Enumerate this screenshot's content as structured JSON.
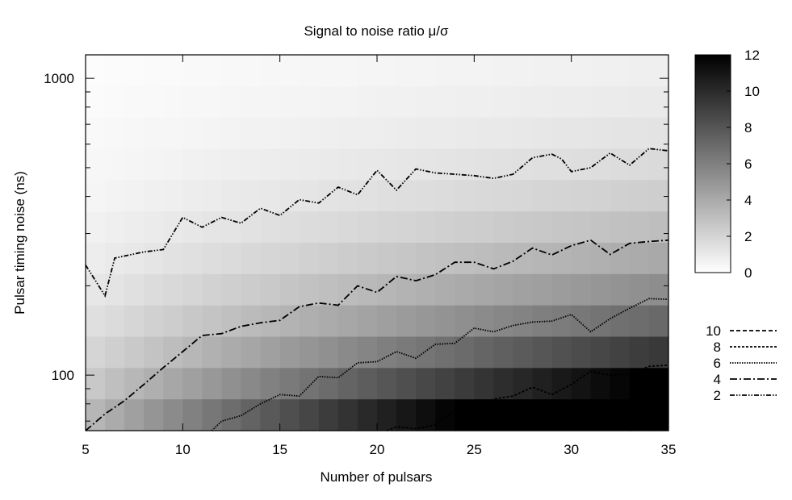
{
  "chart_data": {
    "type": "heatmap",
    "title": "Signal to noise ratio μ/σ",
    "xlabel": "Number of pulsars",
    "ylabel": "Pulsar timing noise (ns)",
    "xlim": [
      5,
      35
    ],
    "ylim": [
      65,
      1200
    ],
    "yscale": "log",
    "x_ticks": [
      5,
      10,
      15,
      20,
      25,
      30,
      35
    ],
    "y_ticks": [
      100,
      1000
    ],
    "colorbar": {
      "range": [
        0,
        12
      ],
      "ticks": [
        0,
        2,
        4,
        6,
        8,
        10,
        12
      ],
      "colors": [
        "#ffffff",
        "#000000"
      ]
    },
    "legend_position": "right",
    "legend": [
      {
        "label": "10",
        "dash": "5,3"
      },
      {
        "label": "8",
        "dash": "3,2"
      },
      {
        "label": "6",
        "dash": "1.5,1.5"
      },
      {
        "label": "4",
        "dash": "9,3,2,3"
      },
      {
        "label": "2",
        "dash": "6,2,1.5,2,1.5,2"
      }
    ],
    "contours": [
      {
        "level": "2",
        "x": [
          5,
          6,
          6.5,
          8,
          9,
          10,
          11,
          12,
          13,
          14,
          15,
          16,
          17,
          18,
          19,
          20,
          21,
          22,
          23,
          24,
          25,
          26,
          27,
          28,
          29,
          29.5,
          30,
          31,
          32,
          33,
          34,
          35
        ],
        "y": [
          235,
          185,
          248,
          260,
          265,
          340,
          315,
          340,
          325,
          365,
          345,
          390,
          380,
          430,
          405,
          490,
          420,
          495,
          480,
          475,
          470,
          460,
          475,
          540,
          555,
          535,
          485,
          500,
          560,
          510,
          580,
          570
        ]
      },
      {
        "level": "4",
        "x": [
          5,
          6,
          7,
          8,
          9,
          10,
          11,
          12,
          13,
          14,
          15,
          16,
          17,
          18,
          19,
          20,
          21,
          22,
          23,
          24,
          25,
          26,
          27,
          28,
          29,
          30,
          31,
          32,
          33,
          34,
          35
        ],
        "y": [
          65,
          74,
          82,
          93,
          106,
          120,
          136,
          138,
          146,
          150,
          153,
          170,
          175,
          172,
          200,
          190,
          215,
          208,
          218,
          240,
          240,
          228,
          242,
          268,
          254,
          273,
          285,
          255,
          278,
          282,
          285
        ]
      },
      {
        "level": "6",
        "x": [
          11.5,
          12,
          13,
          14,
          15,
          16,
          17,
          18,
          19,
          20,
          21,
          22,
          23,
          24,
          25,
          26,
          27,
          28,
          29,
          30,
          31,
          32,
          33,
          34,
          35
        ],
        "y": [
          65,
          70,
          73,
          80,
          86,
          85,
          99,
          98,
          110,
          111,
          120,
          114,
          127,
          128,
          144,
          140,
          147,
          151,
          152,
          160,
          140,
          155,
          168,
          181,
          180
        ]
      },
      {
        "level": "8",
        "x": [
          20.5,
          21,
          22,
          23,
          24,
          25,
          26,
          27,
          28,
          29,
          30,
          31,
          32,
          33,
          34,
          35
        ],
        "y": [
          65,
          67,
          66,
          68,
          76,
          76,
          83,
          85,
          91,
          86,
          93,
          103,
          100,
          101,
          107,
          108
        ]
      },
      {
        "level": "10",
        "x": [
          31.5,
          32,
          32.5,
          33,
          34,
          35
        ],
        "y": [
          65,
          68,
          66,
          65,
          67,
          70
        ]
      }
    ]
  }
}
